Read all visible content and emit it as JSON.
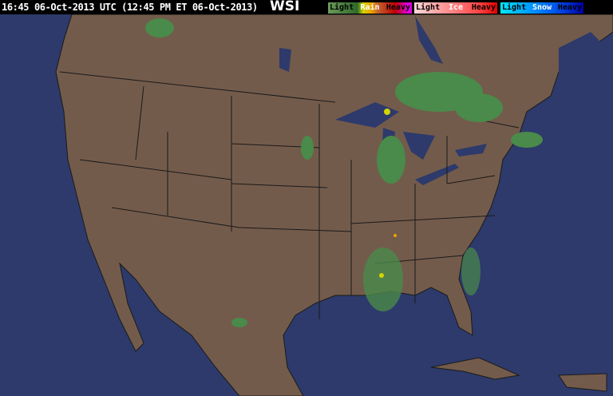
{
  "header": {
    "timestamp": "16:45 06-Oct-2013 UTC (12:45 PM ET 06-Oct-2013)",
    "logo": "WSI"
  },
  "legend": [
    {
      "title": "Rain",
      "light": "Light",
      "heavy": "Heavy",
      "colors": [
        "#5a8f4a",
        "#2f6a2a",
        "#d4d400",
        "#f0a000",
        "#c04000",
        "#e00000",
        "#e000e0"
      ]
    },
    {
      "title": "Ice",
      "light": "Light",
      "heavy": "Heavy",
      "colors": [
        "#ffd0d0",
        "#ff9090",
        "#ff5050",
        "#e00000"
      ]
    },
    {
      "title": "Snow",
      "light": "Light",
      "heavy": "Heavy",
      "colors": [
        "#00e0ff",
        "#0090ff",
        "#0040e0",
        "#0000a0"
      ]
    }
  ],
  "colors": {
    "land": "#735b4b",
    "ocean": "#2d3a6b",
    "borders": "#1a1a1a",
    "radar_light": "#4a8a4a",
    "radar_moderate": "#d4d400"
  }
}
